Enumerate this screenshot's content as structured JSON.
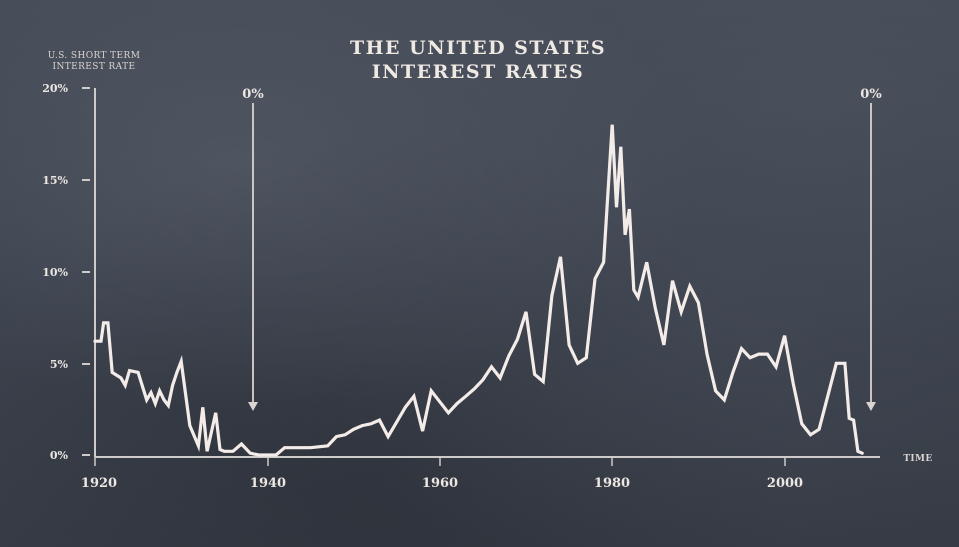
{
  "chart_data": {
    "type": "line",
    "title": "THE UNITED STATES INTEREST RATES",
    "title_lines": [
      "THE UNITED STATES",
      "INTEREST RATES"
    ],
    "ylabel": "U.S. SHORT TERM INTEREST RATE",
    "ylabel_lines": [
      "U.S. SHORT TERM",
      "INTEREST RATE"
    ],
    "xlabel": "TIME",
    "ylim": [
      0,
      20
    ],
    "xlim": [
      1920,
      2010
    ],
    "y_ticks": [
      "0%",
      "5%",
      "10%",
      "15%",
      "20%"
    ],
    "x_ticks": [
      "1920",
      "1940",
      "1960",
      "1980",
      "2000"
    ],
    "grid": false,
    "legend": null,
    "annotations": [
      {
        "text": "0%",
        "x": 1938,
        "arrow": "down"
      },
      {
        "text": "0%",
        "x": 2009,
        "arrow": "down"
      }
    ],
    "series": [
      {
        "name": "U.S. short term interest rate (%)",
        "x": [
          1920,
          1920.7,
          1921,
          1921.5,
          1922,
          1923,
          1923.5,
          1924,
          1925,
          1926,
          1926.5,
          1927,
          1927.5,
          1928,
          1928.5,
          1929,
          1929.5,
          1930,
          1931,
          1932,
          1932.5,
          1933,
          1934,
          1934.5,
          1935,
          1936,
          1937,
          1938,
          1939,
          1940,
          1941,
          1942,
          1943,
          1945,
          1947,
          1948,
          1949,
          1950,
          1951,
          1952,
          1953,
          1954,
          1955,
          1956,
          1957,
          1958,
          1959,
          1960,
          1961,
          1962,
          1963,
          1964,
          1965,
          1966,
          1967,
          1968,
          1969,
          1970,
          1971,
          1972,
          1973,
          1974,
          1975,
          1976,
          1977,
          1978,
          1979,
          1980,
          1980.5,
          1981,
          1981.5,
          1982,
          1982.5,
          1983,
          1984,
          1985,
          1986,
          1987,
          1988,
          1989,
          1990,
          1991,
          1992,
          1993,
          1994,
          1995,
          1996,
          1997,
          1998,
          1999,
          2000,
          2001,
          2002,
          2003,
          2004,
          2005,
          2006,
          2007,
          2007.5,
          2008,
          2008.5,
          2009
        ],
        "values": [
          6.2,
          6.2,
          7.2,
          7.2,
          4.5,
          4.2,
          3.8,
          4.6,
          4.5,
          3.0,
          3.4,
          2.8,
          3.5,
          3.0,
          2.7,
          3.8,
          4.5,
          5.1,
          1.6,
          0.5,
          2.6,
          0.2,
          2.3,
          0.3,
          0.2,
          0.2,
          0.6,
          0.1,
          0.0,
          0.0,
          0.0,
          0.4,
          0.4,
          0.4,
          0.5,
          1.0,
          1.1,
          1.4,
          1.6,
          1.7,
          1.9,
          1.0,
          1.8,
          2.6,
          3.2,
          1.3,
          3.5,
          2.9,
          2.3,
          2.8,
          3.2,
          3.6,
          4.1,
          4.8,
          4.2,
          5.4,
          6.3,
          7.8,
          4.4,
          4.0,
          8.7,
          10.8,
          6.0,
          5.0,
          5.3,
          9.6,
          10.5,
          18.0,
          13.5,
          16.8,
          12.0,
          13.4,
          9.0,
          8.6,
          10.5,
          8.0,
          6.0,
          9.5,
          7.8,
          9.2,
          8.3,
          5.5,
          3.5,
          3.0,
          4.5,
          5.8,
          5.3,
          5.5,
          5.5,
          4.8,
          6.5,
          3.9,
          1.7,
          1.1,
          1.4,
          3.2,
          5.0,
          5.0,
          2.0,
          1.9,
          0.2,
          0.1
        ]
      }
    ]
  },
  "axis": {
    "y_label_line1": "U.S. SHORT TERM",
    "y_label_line2": "INTEREST RATE",
    "x_label": "TIME",
    "y_ticks": [
      {
        "label": "0%",
        "value": 0
      },
      {
        "label": "5%",
        "value": 5
      },
      {
        "label": "10%",
        "value": 10
      },
      {
        "label": "15%",
        "value": 15
      },
      {
        "label": "20%",
        "value": 20
      }
    ],
    "x_ticks": [
      {
        "label": "1920",
        "value": 1920
      },
      {
        "label": "1940",
        "value": 1940
      },
      {
        "label": "1960",
        "value": 1960
      },
      {
        "label": "1980",
        "value": 1980
      },
      {
        "label": "2000",
        "value": 2000
      }
    ]
  },
  "title": {
    "line1": "THE UNITED STATES",
    "line2": "INTEREST RATES"
  },
  "annotations": [
    {
      "label": "0%",
      "year": 1938
    },
    {
      "label": "0%",
      "year": 2009
    }
  ],
  "colors": {
    "background": "#3e4450",
    "line": "#f4ece8",
    "axis": "#cfcbcb",
    "text": "#ece7e3"
  }
}
